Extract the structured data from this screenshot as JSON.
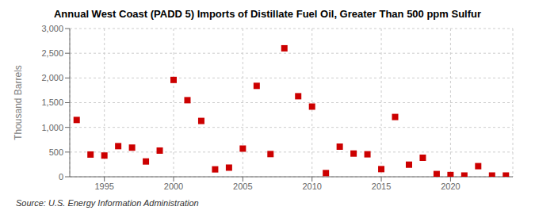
{
  "chart_data": {
    "type": "scatter",
    "title": "Annual West Coast (PADD 5) Imports of Distillate Fuel Oil, Greater Than 500 ppm Sulfur",
    "ylabel": "Thousand Barrels",
    "annotations": [
      "Source: U.S. Energy Information Administration"
    ],
    "x": [
      1993,
      1994,
      1995,
      1996,
      1997,
      1998,
      1999,
      2000,
      2001,
      2002,
      2003,
      2004,
      2005,
      2006,
      2007,
      2008,
      2009,
      2010,
      2011,
      2012,
      2013,
      2014,
      2015,
      2016,
      2017,
      2018,
      2019,
      2020,
      2021,
      2022,
      2023,
      2024
    ],
    "values": [
      1150,
      450,
      430,
      620,
      590,
      310,
      530,
      1960,
      1550,
      1130,
      150,
      185,
      570,
      1840,
      460,
      2600,
      1630,
      1420,
      75,
      610,
      470,
      455,
      155,
      1210,
      245,
      385,
      55,
      35,
      25,
      215,
      25,
      25
    ],
    "color": "#cc0000",
    "marker": "square",
    "xlim": [
      1992.5,
      2024.5
    ],
    "xticks": [
      1995,
      2000,
      2005,
      2010,
      2015,
      2020
    ],
    "ylim": [
      0,
      3000
    ],
    "yticks": [
      0,
      500,
      {
        "value": 1000,
        "label": "1,000"
      },
      {
        "value": 1500,
        "label": "1,500"
      },
      {
        "value": 2000,
        "label": "2,000"
      },
      {
        "value": 2500,
        "label": "2,500"
      },
      {
        "value": 3000,
        "label": "3,000"
      }
    ],
    "grid": true
  }
}
